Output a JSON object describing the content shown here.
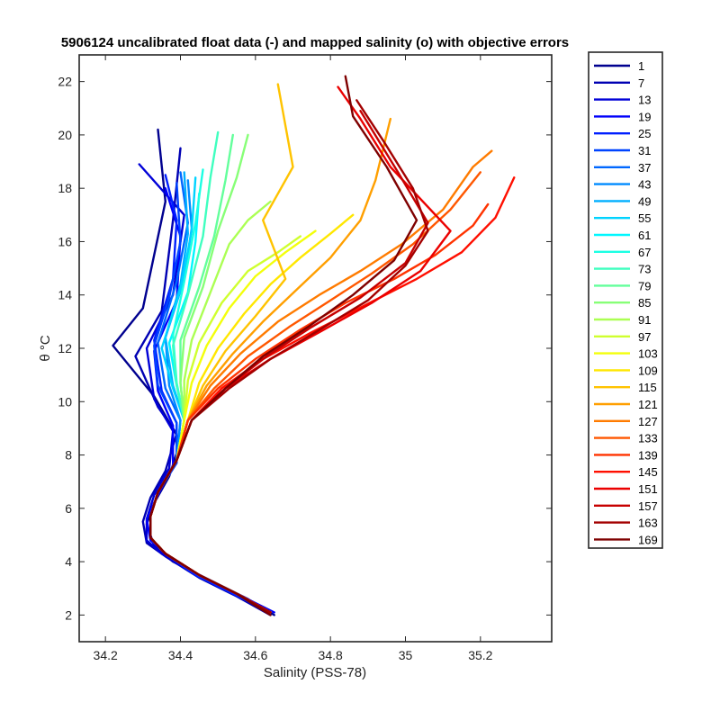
{
  "chart_data": {
    "type": "line",
    "title": "5906124 uncalibrated float data (-) and mapped salinity (o) with objective errors",
    "xlabel": "Salinity (PSS-78)",
    "ylabel": "θ °C",
    "xlim": [
      34.13,
      35.39
    ],
    "ylim": [
      1.0,
      23.0
    ],
    "x_ticks": [
      34.2,
      34.4,
      34.6,
      34.8,
      35,
      35.2
    ],
    "x_tick_labels": [
      "34.2",
      "34.4",
      "34.6",
      "34.8",
      "35",
      "35.2"
    ],
    "y_ticks": [
      2,
      4,
      6,
      8,
      10,
      12,
      14,
      16,
      18,
      20,
      22
    ],
    "y_tick_labels": [
      "2",
      "4",
      "6",
      "8",
      "10",
      "12",
      "14",
      "16",
      "18",
      "20",
      "22"
    ],
    "grid": false,
    "legend_position": "outside-right",
    "colormap": "jet",
    "series": [
      {
        "name": "1",
        "color": "#00008f",
        "x": [
          34.65,
          34.58,
          34.48,
          34.38,
          34.33,
          34.31,
          34.33,
          34.37,
          34.4,
          34.33,
          34.22,
          34.3,
          34.36,
          34.34
        ],
        "y": [
          2.0,
          2.6,
          3.3,
          4.0,
          4.6,
          5.4,
          6.2,
          7.2,
          8.5,
          10.2,
          12.1,
          13.5,
          17.5,
          20.2
        ]
      },
      {
        "name": "7",
        "color": "#0000b3",
        "x": [
          34.64,
          34.55,
          34.45,
          34.36,
          34.31,
          34.3,
          34.32,
          34.36,
          34.39,
          34.34,
          34.28,
          34.35,
          34.38,
          34.4
        ],
        "y": [
          2.0,
          2.7,
          3.4,
          4.2,
          4.7,
          5.5,
          6.4,
          7.4,
          8.8,
          9.8,
          11.7,
          13.4,
          16.8,
          19.5
        ]
      },
      {
        "name": "13",
        "color": "#0000d7",
        "x": [
          34.64,
          34.54,
          34.44,
          34.35,
          34.31,
          34.31,
          34.33,
          34.37,
          34.38,
          34.33,
          34.31,
          34.38,
          34.41,
          34.29
        ],
        "y": [
          2.1,
          2.8,
          3.5,
          4.3,
          4.8,
          5.6,
          6.5,
          7.5,
          8.9,
          10.1,
          12.0,
          14.0,
          17.0,
          18.9
        ]
      },
      {
        "name": "19",
        "color": "#0000fb",
        "x": [
          34.65,
          34.55,
          34.45,
          34.36,
          34.32,
          34.31,
          34.34,
          34.38,
          34.38,
          34.34,
          34.33,
          34.39,
          34.4,
          34.36
        ],
        "y": [
          2.1,
          2.8,
          3.5,
          4.3,
          4.8,
          5.6,
          6.5,
          7.6,
          9.1,
          10.4,
          11.9,
          13.8,
          16.2,
          18.0
        ]
      },
      {
        "name": "25",
        "color": "#001fff",
        "x": [
          34.64,
          34.54,
          34.44,
          34.36,
          34.32,
          34.32,
          34.34,
          34.39,
          34.39,
          34.35,
          34.33,
          34.38,
          34.39,
          34.36
        ],
        "y": [
          2.1,
          2.8,
          3.5,
          4.3,
          4.9,
          5.7,
          6.6,
          7.7,
          9.2,
          10.4,
          12.3,
          14.6,
          16.8,
          18.5
        ]
      },
      {
        "name": "31",
        "color": "#0043ff",
        "x": [
          34.64,
          34.55,
          34.45,
          34.36,
          34.32,
          34.32,
          34.34,
          34.39,
          34.39,
          34.34,
          34.33,
          34.37,
          34.4,
          34.39
        ],
        "y": [
          2.1,
          2.8,
          3.5,
          4.3,
          4.9,
          5.7,
          6.6,
          7.7,
          9.2,
          10.6,
          12.1,
          13.9,
          16.0,
          18.2
        ]
      },
      {
        "name": "37",
        "color": "#0067ff",
        "x": [
          34.64,
          34.55,
          34.45,
          34.36,
          34.32,
          34.32,
          34.34,
          34.39,
          34.4,
          34.36,
          34.34,
          34.39,
          34.42,
          34.4
        ],
        "y": [
          2.1,
          2.8,
          3.5,
          4.3,
          4.9,
          5.7,
          6.6,
          7.8,
          9.3,
          10.5,
          12.2,
          14.5,
          16.7,
          18.6
        ]
      },
      {
        "name": "43",
        "color": "#008bff",
        "x": [
          34.64,
          34.55,
          34.45,
          34.36,
          34.32,
          34.32,
          34.34,
          34.39,
          34.4,
          34.37,
          34.36,
          34.41,
          34.43,
          34.42
        ],
        "y": [
          2.1,
          2.8,
          3.5,
          4.3,
          4.9,
          5.7,
          6.6,
          7.8,
          9.3,
          10.6,
          12.4,
          14.6,
          16.5,
          18.3
        ]
      },
      {
        "name": "49",
        "color": "#00afff",
        "x": [
          34.64,
          34.55,
          34.45,
          34.36,
          34.32,
          34.32,
          34.34,
          34.39,
          34.41,
          34.38,
          34.36,
          34.4,
          34.42,
          34.41
        ],
        "y": [
          2.1,
          2.8,
          3.5,
          4.3,
          4.9,
          5.7,
          6.6,
          7.8,
          9.3,
          10.6,
          12.4,
          14.4,
          16.3,
          18.6
        ]
      },
      {
        "name": "55",
        "color": "#00d3ff",
        "x": [
          34.64,
          34.55,
          34.45,
          34.36,
          34.32,
          34.32,
          34.34,
          34.39,
          34.41,
          34.38,
          34.35,
          34.4,
          34.43,
          34.44
        ],
        "y": [
          2.1,
          2.8,
          3.5,
          4.3,
          4.9,
          5.7,
          6.6,
          7.8,
          9.3,
          10.5,
          12.0,
          14.2,
          16.4,
          18.4
        ]
      },
      {
        "name": "61",
        "color": "#00f7ff",
        "x": [
          34.64,
          34.55,
          34.45,
          34.36,
          34.32,
          34.32,
          34.34,
          34.39,
          34.41,
          34.39,
          34.37,
          34.42,
          34.44,
          34.45
        ],
        "y": [
          2.1,
          2.8,
          3.5,
          4.3,
          4.9,
          5.7,
          6.6,
          7.8,
          9.3,
          10.6,
          12.2,
          14.1,
          16.0,
          17.8
        ]
      },
      {
        "name": "67",
        "color": "#1bffe3",
        "x": [
          34.64,
          34.55,
          34.45,
          34.36,
          34.32,
          34.32,
          34.34,
          34.39,
          34.41,
          34.39,
          34.38,
          34.41,
          34.44,
          34.46
        ],
        "y": [
          2.1,
          2.8,
          3.5,
          4.3,
          4.9,
          5.7,
          6.6,
          7.8,
          9.3,
          10.7,
          12.5,
          14.5,
          16.7,
          18.7
        ]
      },
      {
        "name": "73",
        "color": "#3fffbf",
        "x": [
          34.64,
          34.55,
          34.45,
          34.36,
          34.32,
          34.32,
          34.34,
          34.39,
          34.41,
          34.39,
          34.38,
          34.42,
          34.46,
          34.48,
          34.5
        ],
        "y": [
          2.1,
          2.8,
          3.5,
          4.3,
          4.9,
          5.7,
          6.6,
          7.8,
          9.3,
          10.6,
          12.1,
          14.0,
          16.2,
          18.4,
          20.1
        ]
      },
      {
        "name": "79",
        "color": "#63ff9b",
        "x": [
          34.64,
          34.55,
          34.45,
          34.36,
          34.32,
          34.32,
          34.34,
          34.39,
          34.41,
          34.4,
          34.4,
          34.45,
          34.49,
          34.52,
          34.54
        ],
        "y": [
          2.1,
          2.8,
          3.5,
          4.3,
          4.9,
          5.7,
          6.6,
          7.8,
          9.3,
          10.7,
          12.3,
          14.3,
          16.2,
          18.3,
          20.0
        ]
      },
      {
        "name": "85",
        "color": "#87ff77",
        "x": [
          34.64,
          34.55,
          34.45,
          34.36,
          34.32,
          34.32,
          34.34,
          34.39,
          34.41,
          34.4,
          34.41,
          34.46,
          34.5,
          34.55,
          34.58
        ],
        "y": [
          2.1,
          2.8,
          3.5,
          4.3,
          4.9,
          5.7,
          6.6,
          7.8,
          9.3,
          10.7,
          12.4,
          14.3,
          16.4,
          18.4,
          20.0
        ]
      },
      {
        "name": "91",
        "color": "#abff53",
        "x": [
          34.64,
          34.55,
          34.45,
          34.36,
          34.32,
          34.32,
          34.34,
          34.39,
          34.41,
          34.41,
          34.43,
          34.48,
          34.53,
          34.58,
          34.64
        ],
        "y": [
          2.1,
          2.8,
          3.5,
          4.3,
          4.9,
          5.7,
          6.6,
          7.8,
          9.3,
          10.8,
          12.3,
          14.1,
          15.9,
          16.8,
          17.5
        ]
      },
      {
        "name": "97",
        "color": "#cfff2f",
        "x": [
          34.64,
          34.55,
          34.45,
          34.36,
          34.32,
          34.32,
          34.34,
          34.39,
          34.41,
          34.42,
          34.45,
          34.51,
          34.58,
          34.66,
          34.72
        ],
        "y": [
          2.1,
          2.8,
          3.5,
          4.3,
          4.9,
          5.7,
          6.6,
          7.8,
          9.3,
          10.8,
          12.2,
          13.7,
          14.9,
          15.6,
          16.2
        ]
      },
      {
        "name": "103",
        "color": "#f3ff0b",
        "x": [
          34.64,
          34.55,
          34.45,
          34.36,
          34.32,
          34.32,
          34.34,
          34.39,
          34.41,
          34.43,
          34.47,
          34.53,
          34.6,
          34.68,
          34.76
        ],
        "y": [
          2.1,
          2.8,
          3.5,
          4.3,
          4.9,
          5.7,
          6.6,
          7.8,
          9.3,
          10.7,
          12.1,
          13.5,
          14.7,
          15.6,
          16.4
        ]
      },
      {
        "name": "109",
        "color": "#ffe700",
        "x": [
          34.64,
          34.55,
          34.45,
          34.36,
          34.32,
          34.32,
          34.34,
          34.39,
          34.42,
          34.45,
          34.5,
          34.57,
          34.64,
          34.72,
          34.8,
          34.86
        ],
        "y": [
          2.1,
          2.8,
          3.5,
          4.3,
          4.9,
          5.7,
          6.6,
          7.8,
          9.3,
          10.7,
          12.0,
          13.3,
          14.4,
          15.4,
          16.3,
          17.0
        ]
      },
      {
        "name": "115",
        "color": "#ffc300",
        "x": [
          34.64,
          34.55,
          34.45,
          34.36,
          34.32,
          34.32,
          34.34,
          34.39,
          34.42,
          34.46,
          34.52,
          34.6,
          34.68,
          34.62,
          34.7,
          34.66
        ],
        "y": [
          2.1,
          2.8,
          3.5,
          4.3,
          4.9,
          5.7,
          6.6,
          7.8,
          9.3,
          10.6,
          11.9,
          13.2,
          14.6,
          16.8,
          18.8,
          21.9
        ]
      },
      {
        "name": "121",
        "color": "#ff9f00",
        "x": [
          34.64,
          34.55,
          34.45,
          34.36,
          34.32,
          34.32,
          34.34,
          34.39,
          34.42,
          34.47,
          34.54,
          34.62,
          34.71,
          34.8,
          34.88,
          34.92,
          34.96
        ],
        "y": [
          2.1,
          2.8,
          3.5,
          4.3,
          4.9,
          5.7,
          6.6,
          7.8,
          9.3,
          10.6,
          11.8,
          13.0,
          14.2,
          15.4,
          16.8,
          18.3,
          20.6
        ]
      },
      {
        "name": "127",
        "color": "#ff7b00",
        "x": [
          34.64,
          34.55,
          34.45,
          34.36,
          34.32,
          34.32,
          34.34,
          34.39,
          34.42,
          34.48,
          34.56,
          34.66,
          34.77,
          34.88,
          34.99,
          35.1,
          35.18,
          35.23
        ],
        "y": [
          2.1,
          2.8,
          3.5,
          4.3,
          4.9,
          5.7,
          6.6,
          7.8,
          9.3,
          10.6,
          11.8,
          13.0,
          14.0,
          14.9,
          15.9,
          17.2,
          18.8,
          19.4
        ]
      },
      {
        "name": "133",
        "color": "#ff5700",
        "x": [
          34.64,
          34.55,
          34.45,
          34.36,
          34.32,
          34.32,
          34.34,
          34.39,
          34.42,
          34.49,
          34.58,
          34.69,
          34.8,
          34.91,
          35.02,
          35.12,
          35.2
        ],
        "y": [
          2.1,
          2.8,
          3.5,
          4.3,
          4.9,
          5.7,
          6.6,
          7.8,
          9.3,
          10.5,
          11.7,
          12.8,
          13.8,
          14.8,
          15.9,
          17.2,
          18.6
        ]
      },
      {
        "name": "139",
        "color": "#ff3300",
        "x": [
          34.64,
          34.55,
          34.45,
          34.36,
          34.32,
          34.32,
          34.34,
          34.39,
          34.42,
          34.5,
          34.6,
          34.72,
          34.84,
          34.97,
          35.08,
          35.18,
          35.22
        ],
        "y": [
          2.1,
          2.8,
          3.5,
          4.3,
          4.9,
          5.7,
          6.6,
          7.8,
          9.3,
          10.5,
          11.6,
          12.7,
          13.7,
          14.6,
          15.5,
          16.6,
          17.4
        ]
      },
      {
        "name": "145",
        "color": "#ff0f00",
        "x": [
          34.64,
          34.55,
          34.45,
          34.36,
          34.32,
          34.32,
          34.34,
          34.39,
          34.43,
          34.51,
          34.62,
          34.75,
          34.89,
          35.03,
          35.15,
          35.24,
          35.29
        ],
        "y": [
          2.1,
          2.8,
          3.5,
          4.3,
          4.9,
          5.7,
          6.6,
          7.8,
          9.3,
          10.5,
          11.6,
          12.6,
          13.6,
          14.6,
          15.6,
          16.9,
          18.4
        ]
      },
      {
        "name": "151",
        "color": "#eb0000",
        "x": [
          34.64,
          34.55,
          34.45,
          34.36,
          34.32,
          34.32,
          34.34,
          34.39,
          34.43,
          34.52,
          34.64,
          34.77,
          34.91,
          35.04,
          35.12,
          34.96,
          34.88,
          34.82
        ],
        "y": [
          2.1,
          2.8,
          3.5,
          4.3,
          4.9,
          5.7,
          6.6,
          7.8,
          9.3,
          10.5,
          11.6,
          12.6,
          13.7,
          14.9,
          16.4,
          18.8,
          20.6,
          21.8
        ]
      },
      {
        "name": "157",
        "color": "#c70000",
        "x": [
          34.64,
          34.55,
          34.45,
          34.36,
          34.32,
          34.32,
          34.34,
          34.39,
          34.43,
          34.52,
          34.63,
          34.75,
          34.88,
          35.0,
          35.06,
          34.98,
          34.88
        ],
        "y": [
          2.1,
          2.8,
          3.5,
          4.3,
          4.9,
          5.7,
          6.6,
          7.8,
          9.3,
          10.5,
          11.7,
          12.8,
          13.9,
          15.2,
          16.7,
          18.6,
          20.9
        ]
      },
      {
        "name": "163",
        "color": "#a30000",
        "x": [
          34.64,
          34.55,
          34.45,
          34.36,
          34.32,
          34.32,
          34.34,
          34.39,
          34.43,
          34.53,
          34.64,
          34.76,
          34.9,
          35.0,
          35.06,
          35.02,
          34.94,
          34.87
        ],
        "y": [
          2.1,
          2.8,
          3.5,
          4.3,
          4.9,
          5.7,
          6.6,
          7.8,
          9.3,
          10.5,
          11.6,
          12.6,
          13.8,
          15.1,
          16.4,
          18.0,
          19.8,
          21.3
        ]
      },
      {
        "name": "169",
        "color": "#7f0000",
        "x": [
          34.64,
          34.55,
          34.45,
          34.36,
          34.32,
          34.32,
          34.34,
          34.39,
          34.43,
          34.52,
          34.62,
          34.74,
          34.86,
          34.97,
          35.03,
          34.95,
          34.86,
          34.84
        ],
        "y": [
          2.0,
          2.8,
          3.5,
          4.3,
          4.9,
          5.7,
          6.6,
          7.8,
          9.3,
          10.5,
          11.7,
          12.8,
          14.0,
          15.3,
          16.8,
          18.8,
          20.7,
          22.2
        ]
      }
    ]
  }
}
